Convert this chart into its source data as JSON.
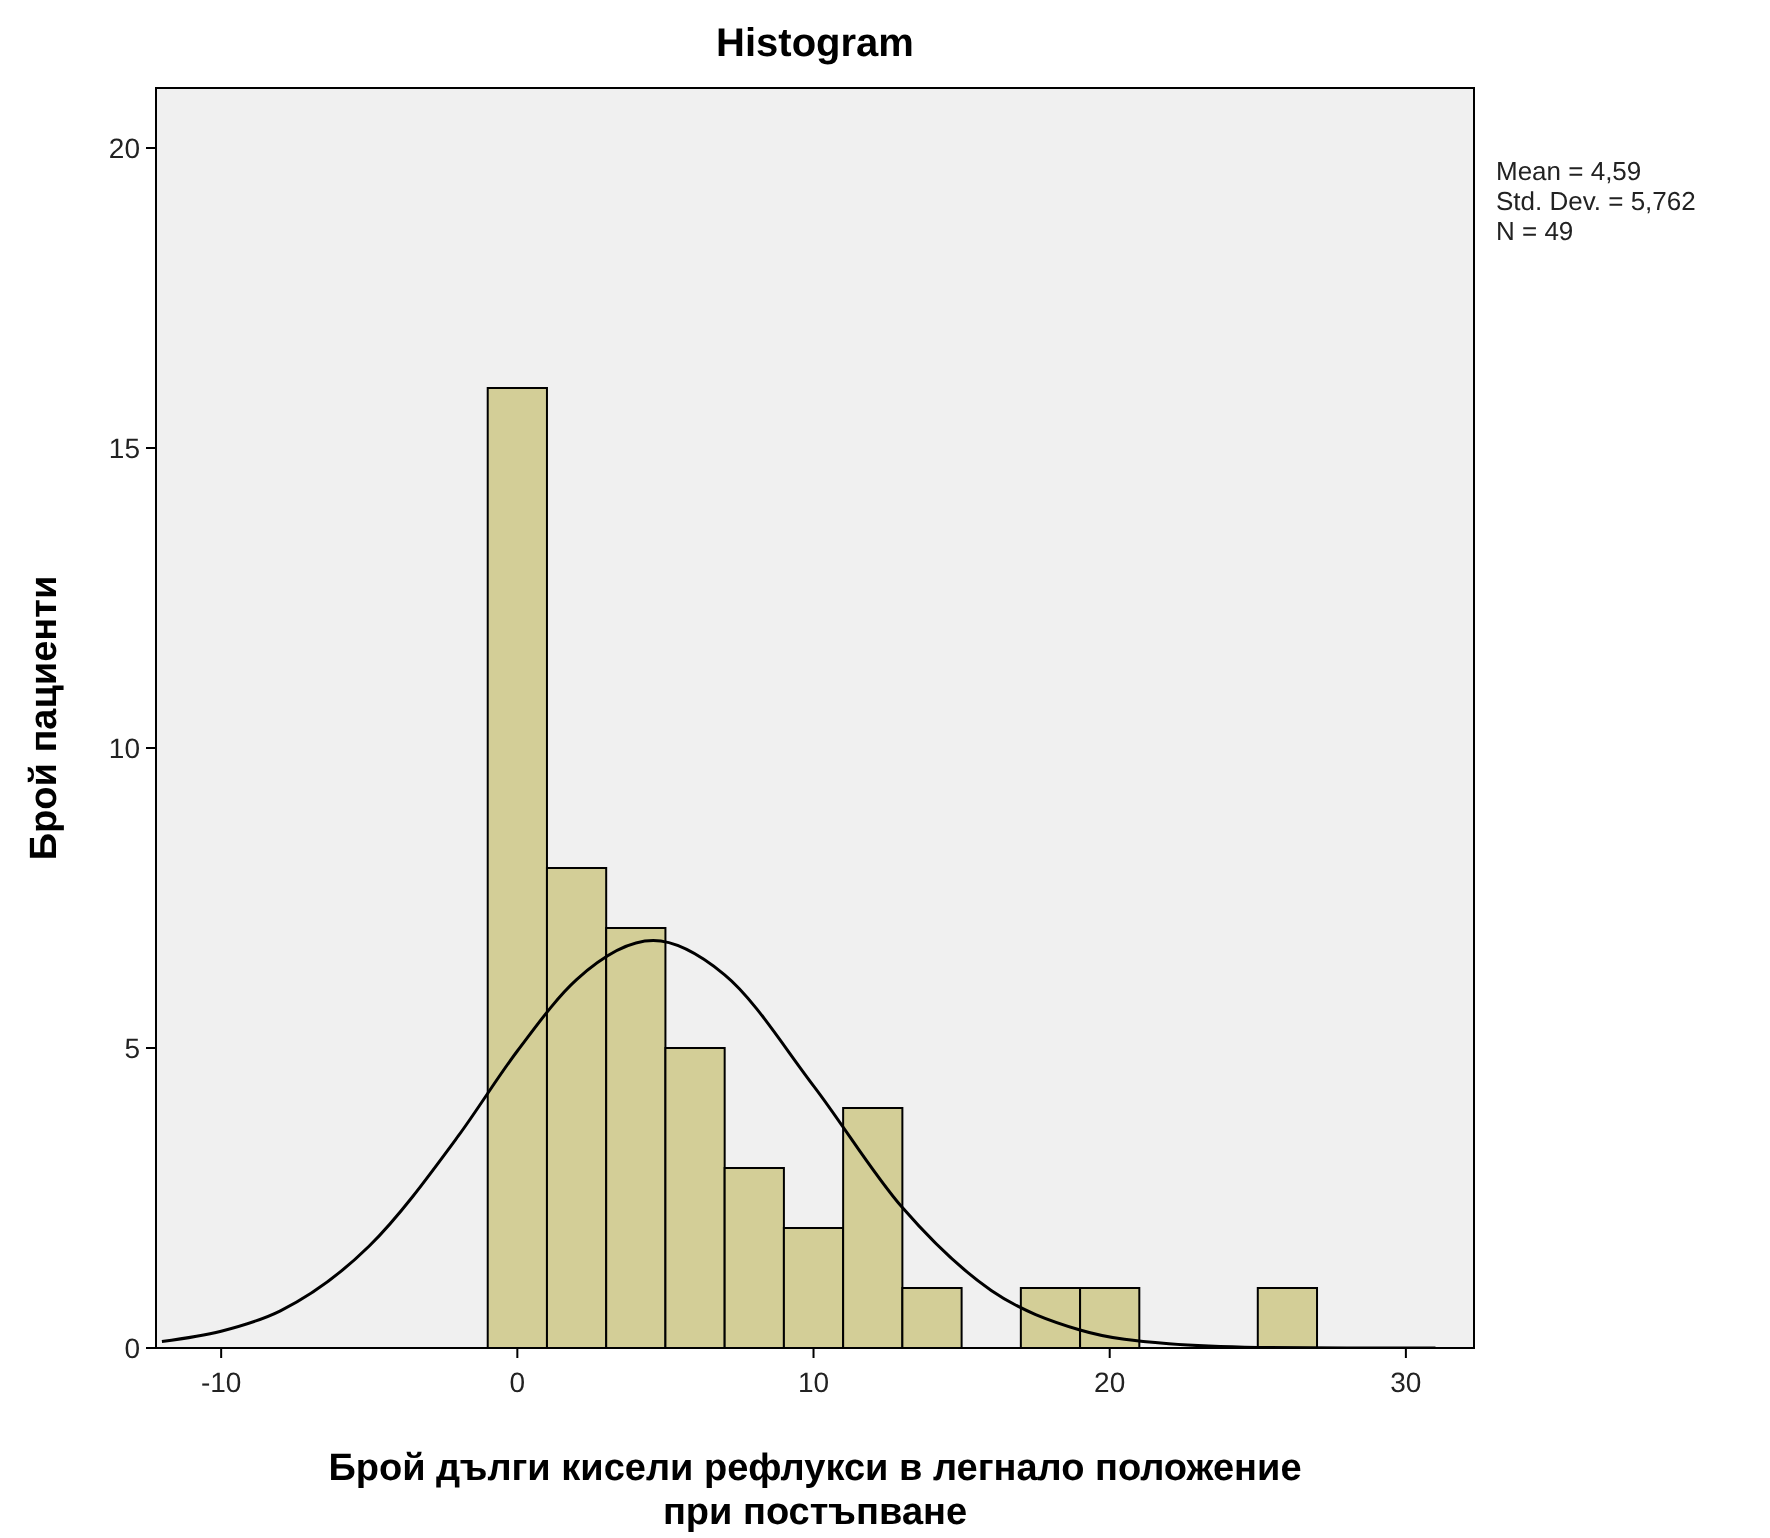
{
  "chart_data": {
    "type": "histogram",
    "title": "Histogram",
    "xlabel": "Брой дълги кисели рефлукси в легнало положение при постъпване",
    "ylabel": "Брой пациенти",
    "bins": [
      -1,
      1,
      3,
      5,
      7,
      9,
      11,
      13,
      15,
      17,
      19,
      21,
      23,
      25,
      27
    ],
    "values": [
      16,
      8,
      7,
      5,
      3,
      2,
      4,
      1,
      0,
      1,
      1,
      0,
      0,
      1
    ],
    "color": "#d3ce97",
    "series": [
      {
        "type": "line",
        "color": "#000000",
        "x": [
          -12,
          -10,
          -8,
          -5,
          -2,
          0,
          2,
          4.59,
          7,
          10,
          13,
          16,
          19,
          22,
          25,
          28,
          31
        ],
        "values": [
          0.11,
          0.28,
          0.62,
          1.7,
          3.53,
          4.95,
          6.14,
          6.79,
          6.22,
          4.37,
          2.34,
          0.96,
          0.3,
          0.07,
          0.01,
          0,
          0
        ]
      }
    ],
    "xlim": [
      -12.2,
      32.3
    ],
    "xticks": [
      -10,
      0,
      10,
      20,
      30
    ],
    "ylim": [
      0,
      21
    ],
    "yticks": [
      0,
      5,
      10,
      15,
      20
    ],
    "grid": false,
    "annotations": [
      "Mean = 4,59",
      "Std. Dev. = 5,762",
      "N = 49"
    ]
  }
}
